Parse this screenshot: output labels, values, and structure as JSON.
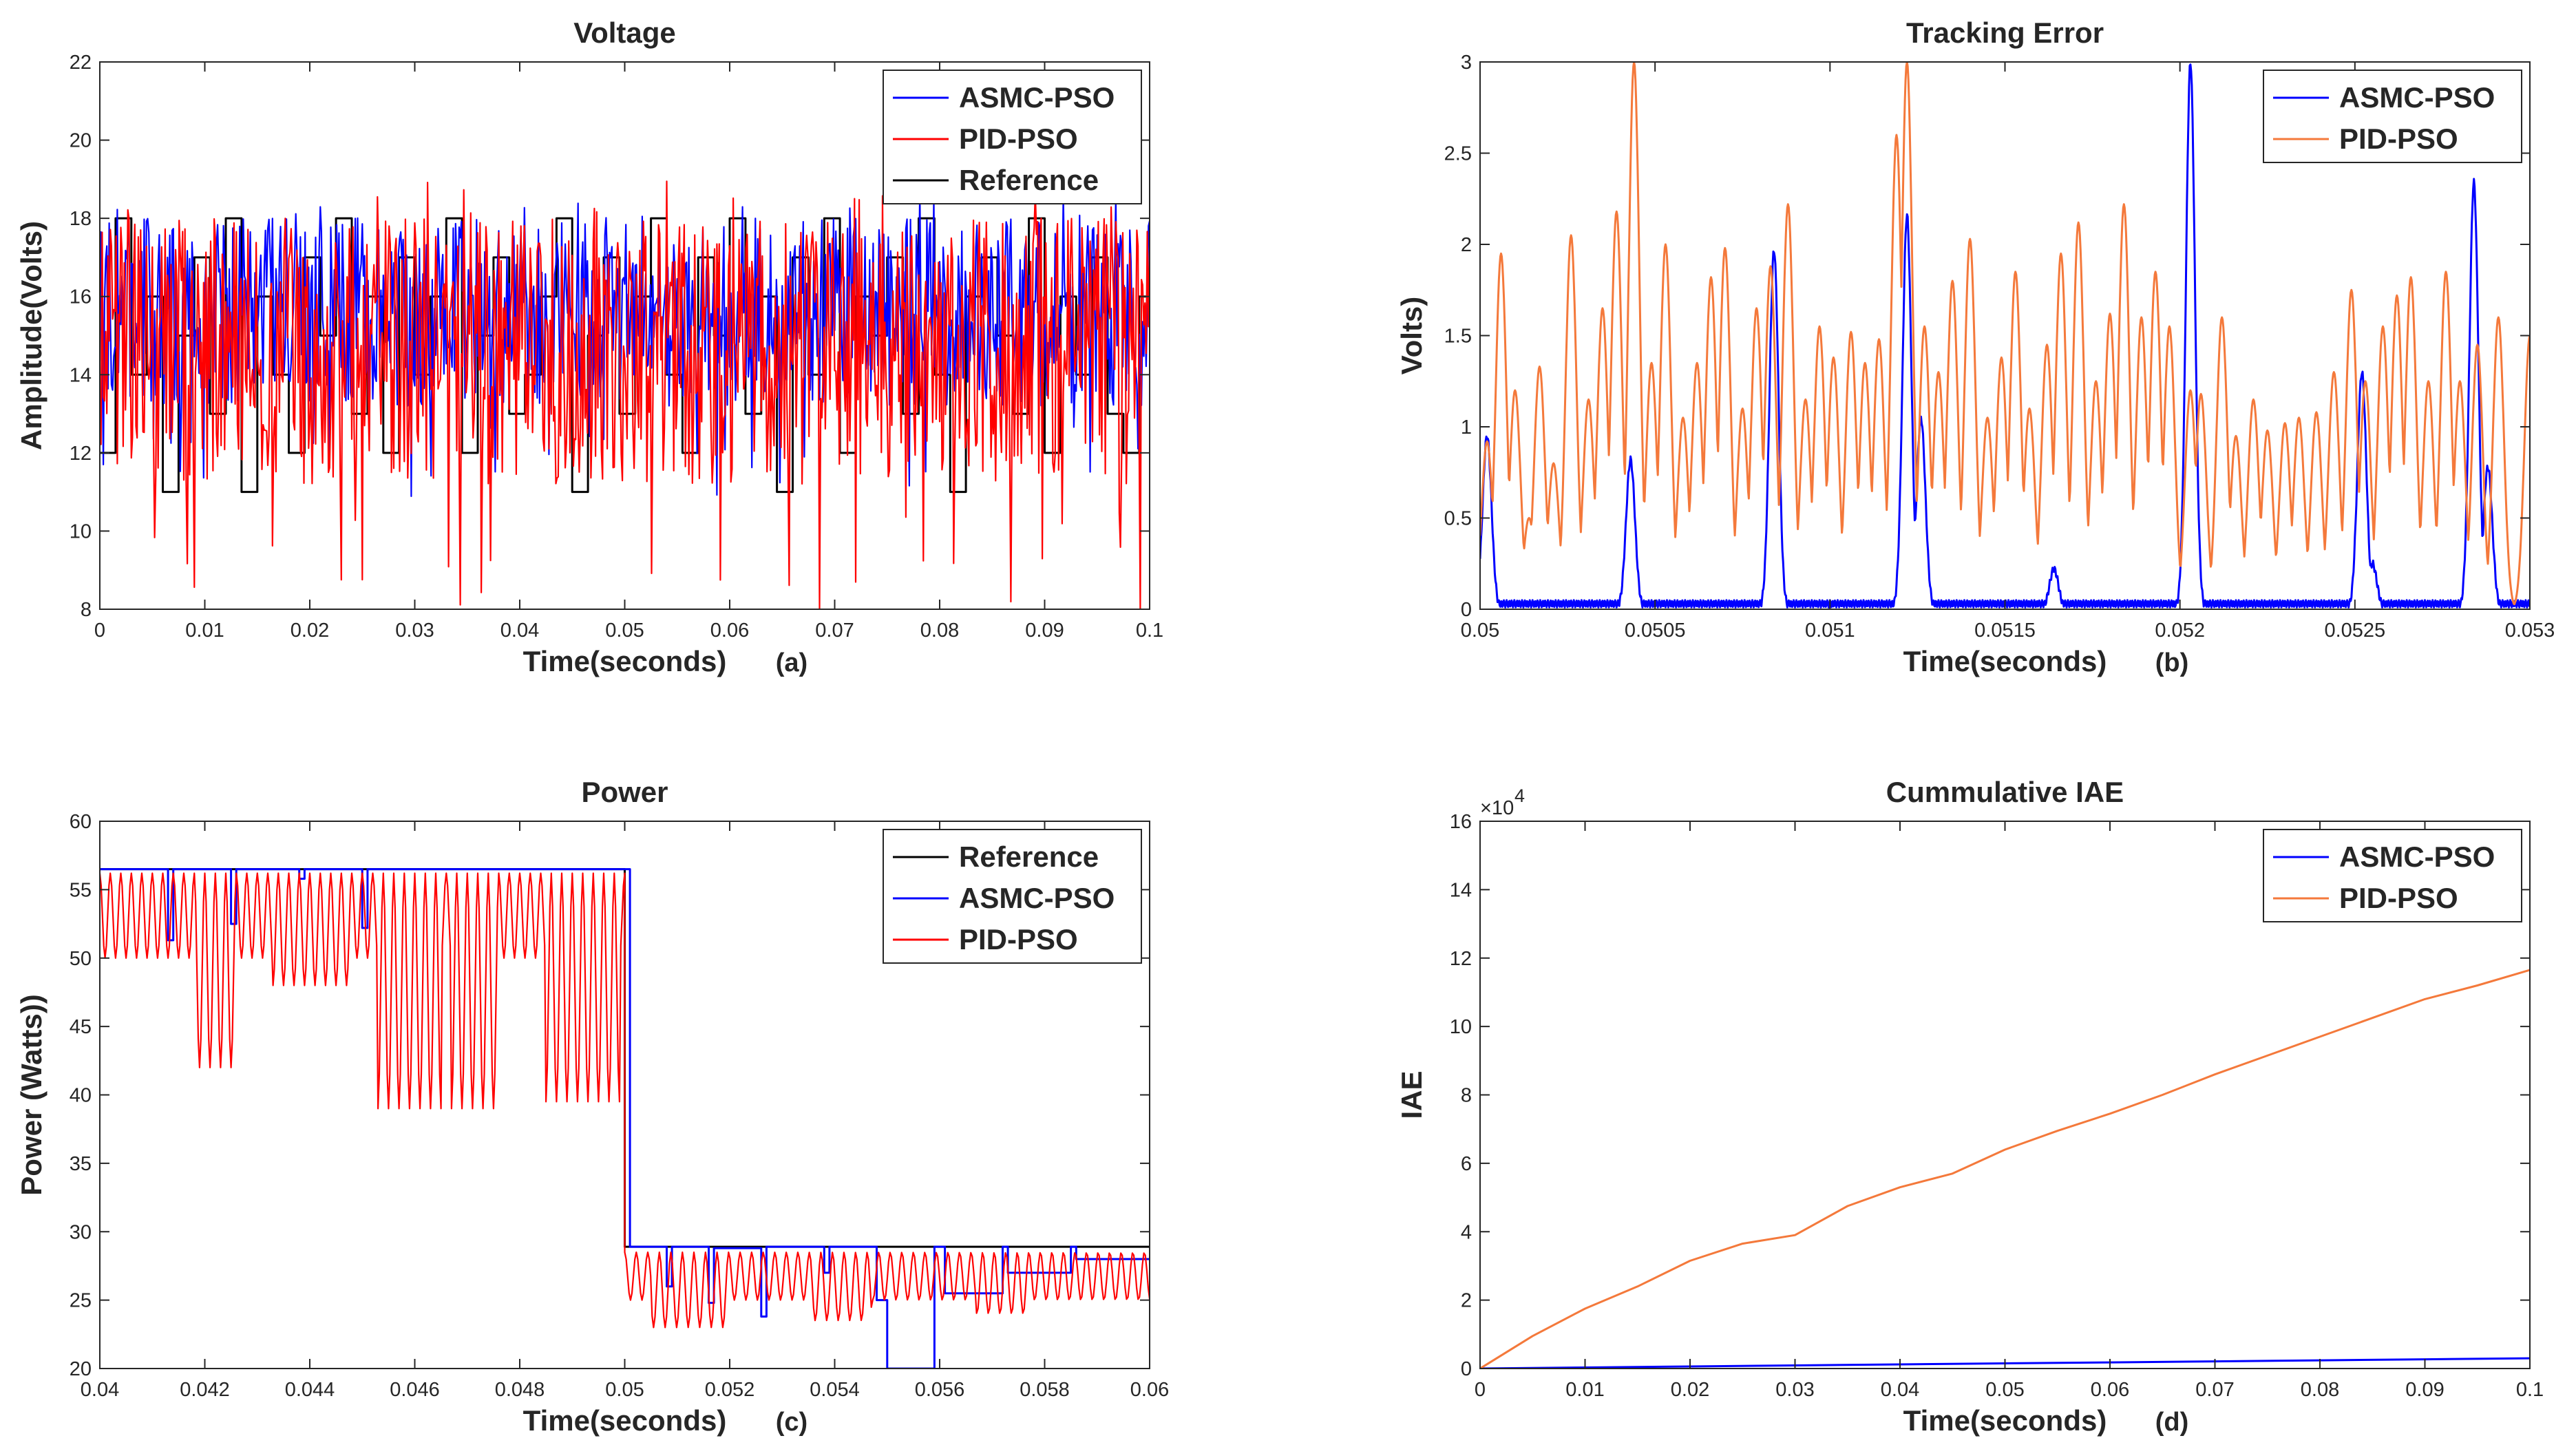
{
  "chart_data": [
    {
      "id": "a",
      "type": "line",
      "title": "Voltage",
      "xlabel": "Time(seconds)",
      "ylabel": "Amplitude(Volts)",
      "panel_label": "(a)",
      "xlim": [
        0,
        0.1
      ],
      "ylim": [
        8,
        22
      ],
      "xticks": [
        0,
        0.01,
        0.02,
        0.03,
        0.04,
        0.05,
        0.06,
        0.07,
        0.08,
        0.09,
        0.1
      ],
      "xticklabels": [
        "0",
        "0.01",
        "0.02",
        "0.03",
        "0.04",
        "0.05",
        "0.06",
        "0.07",
        "0.08",
        "0.09",
        "0.1"
      ],
      "yticks": [
        8,
        10,
        12,
        14,
        16,
        18,
        20,
        22
      ],
      "yticklabels": [
        "8",
        "10",
        "12",
        "14",
        "16",
        "18",
        "20",
        "22"
      ],
      "legend_position": "top-right",
      "legend": [
        "ASMC-PSO",
        "PID-PSO",
        "Reference"
      ],
      "series": [
        {
          "name": "Reference",
          "color": "#000000",
          "kind": "step",
          "x": [
            0,
            0.0015,
            0.003,
            0.0045,
            0.006,
            0.0075,
            0.009,
            0.0105,
            0.012,
            0.0135,
            0.015,
            0.0165,
            0.018,
            0.0195,
            0.021,
            0.0225,
            0.024,
            0.0255,
            0.027,
            0.0285,
            0.03,
            0.0315,
            0.033,
            0.0345,
            0.036,
            0.0375,
            0.039,
            0.0405,
            0.042,
            0.0435,
            0.045,
            0.0465,
            0.048,
            0.0495,
            0.051,
            0.0525,
            0.054,
            0.0555,
            0.057,
            0.0585,
            0.06,
            0.0615,
            0.063,
            0.0645,
            0.066,
            0.0675,
            0.069,
            0.0705,
            0.072,
            0.0735,
            0.075,
            0.0765,
            0.078,
            0.0795,
            0.081,
            0.0825,
            0.084,
            0.0855,
            0.087,
            0.0885,
            0.09,
            0.0915,
            0.093,
            0.0945,
            0.096,
            0.0975,
            0.099
          ],
          "values": [
            12,
            18,
            14,
            16,
            11,
            15,
            17,
            13,
            18,
            11,
            16,
            14,
            12,
            17,
            15,
            18,
            13,
            16,
            12,
            17,
            14,
            16,
            18,
            12,
            15,
            17,
            13,
            14,
            16,
            18,
            11,
            15,
            17,
            13,
            16,
            18,
            14,
            12,
            17,
            15,
            18,
            13,
            16,
            11,
            17,
            14,
            18,
            12,
            16,
            15,
            17,
            13,
            18,
            14,
            11,
            16,
            17,
            15,
            13,
            18,
            12,
            16,
            14,
            17,
            13,
            12,
            16
          ]
        },
        {
          "name": "ASMC-PSO",
          "color": "#0000ff",
          "kind": "noisy",
          "base": 15.6,
          "amp": 2.4,
          "seed": 7
        },
        {
          "name": "PID-PSO",
          "color": "#ff0000",
          "kind": "noisy",
          "base": 14.6,
          "amp": 3.4,
          "seed": 13
        }
      ]
    },
    {
      "id": "b",
      "type": "line",
      "title": "Tracking Error",
      "xlabel": "Time(seconds)",
      "ylabel": "Volts)",
      "panel_label": "(b)",
      "xlim": [
        0.05,
        0.053
      ],
      "ylim": [
        0,
        3
      ],
      "xticks": [
        0.05,
        0.0505,
        0.051,
        0.0515,
        0.052,
        0.0525,
        0.053
      ],
      "xticklabels": [
        "0.05",
        "0.0505",
        "0.051",
        "0.0515",
        "0.052",
        "0.0525",
        "0.053"
      ],
      "yticks": [
        0,
        0.5,
        1,
        1.5,
        2,
        2.5,
        3
      ],
      "yticklabels": [
        "0",
        "0.5",
        "1",
        "1.5",
        "2",
        "2.5",
        "3"
      ],
      "legend_position": "top-right",
      "legend": [
        "ASMC-PSO",
        "PID-PSO"
      ],
      "series": [
        {
          "name": "ASMC-PSO",
          "color": "#0000ff",
          "kind": "spikes",
          "baseline": 0.03,
          "width": 1.8e-05,
          "peaks": [
            [
              0.05002,
              0.95
            ],
            [
              0.05043,
              0.82
            ],
            [
              0.05084,
              1.97
            ],
            [
              0.05122,
              2.16
            ],
            [
              0.05126,
              1.05
            ],
            [
              0.05164,
              0.22
            ],
            [
              0.05203,
              3.0
            ],
            [
              0.05252,
              1.3
            ],
            [
              0.05255,
              0.25
            ],
            [
              0.05284,
              2.34
            ],
            [
              0.05288,
              0.78
            ]
          ]
        },
        {
          "name": "PID-PSO",
          "color": "#f4793b",
          "kind": "spikes",
          "baseline": 0.0,
          "width": 2.2e-05,
          "peaks": [
            [
              0.05002,
              0.92
            ],
            [
              0.05006,
              1.95
            ],
            [
              0.0501,
              1.2
            ],
            [
              0.05014,
              0.5
            ],
            [
              0.05017,
              1.33
            ],
            [
              0.05021,
              0.8
            ],
            [
              0.05026,
              2.05
            ],
            [
              0.05031,
              1.15
            ],
            [
              0.05035,
              1.65
            ],
            [
              0.05039,
              2.18
            ],
            [
              0.05044,
              3.0
            ],
            [
              0.05049,
              1.35
            ],
            [
              0.05053,
              2.0
            ],
            [
              0.05058,
              1.05
            ],
            [
              0.05062,
              1.35
            ],
            [
              0.05066,
              1.82
            ],
            [
              0.0507,
              1.98
            ],
            [
              0.05075,
              1.1
            ],
            [
              0.05079,
              1.65
            ],
            [
              0.05083,
              1.88
            ],
            [
              0.05088,
              2.22
            ],
            [
              0.05093,
              1.15
            ],
            [
              0.05097,
              1.55
            ],
            [
              0.05101,
              1.38
            ],
            [
              0.05106,
              1.52
            ],
            [
              0.0511,
              1.35
            ],
            [
              0.05114,
              1.48
            ],
            [
              0.05119,
              2.6
            ],
            [
              0.05122,
              3.0
            ],
            [
              0.05127,
              1.55
            ],
            [
              0.05131,
              1.3
            ],
            [
              0.05135,
              1.8
            ],
            [
              0.0514,
              2.03
            ],
            [
              0.05145,
              1.05
            ],
            [
              0.05149,
              1.38
            ],
            [
              0.05153,
              1.85
            ],
            [
              0.05157,
              1.1
            ],
            [
              0.05162,
              1.45
            ],
            [
              0.05166,
              1.95
            ],
            [
              0.05171,
              2.12
            ],
            [
              0.05176,
              1.25
            ],
            [
              0.0518,
              1.62
            ],
            [
              0.05184,
              2.22
            ],
            [
              0.05189,
              1.6
            ],
            [
              0.05193,
              1.85
            ],
            [
              0.05197,
              1.55
            ],
            [
              0.05203,
              1.2
            ],
            [
              0.05206,
              1.18
            ],
            [
              0.05212,
              1.6
            ],
            [
              0.05216,
              0.95
            ],
            [
              0.05221,
              1.15
            ],
            [
              0.05225,
              0.98
            ],
            [
              0.0523,
              1.02
            ],
            [
              0.05234,
              1.05
            ],
            [
              0.05239,
              1.08
            ],
            [
              0.05244,
              1.3
            ],
            [
              0.05249,
              1.75
            ],
            [
              0.05253,
              1.25
            ],
            [
              0.05258,
              1.55
            ],
            [
              0.05262,
              1.72
            ],
            [
              0.05266,
              1.82
            ],
            [
              0.05271,
              1.25
            ],
            [
              0.05276,
              1.85
            ],
            [
              0.0528,
              1.25
            ],
            [
              0.05285,
              1.45
            ],
            [
              0.05291,
              1.6
            ],
            [
              0.053,
              1.5
            ]
          ]
        }
      ]
    },
    {
      "id": "c",
      "type": "line",
      "title": "Power",
      "xlabel": "Time(seconds)",
      "ylabel": "Power (Watts))",
      "panel_label": "(c)",
      "xlim": [
        0.04,
        0.06
      ],
      "ylim": [
        20,
        60
      ],
      "xticks": [
        0.04,
        0.042,
        0.044,
        0.046,
        0.048,
        0.05,
        0.052,
        0.054,
        0.056,
        0.058,
        0.06
      ],
      "xticklabels": [
        "0.04",
        "0.042",
        "0.044",
        "0.046",
        "0.048",
        "0.05",
        "0.052",
        "0.054",
        "0.056",
        "0.058",
        "0.06"
      ],
      "yticks": [
        20,
        25,
        30,
        35,
        40,
        45,
        50,
        55,
        60
      ],
      "yticklabels": [
        "20",
        "25",
        "30",
        "35",
        "40",
        "45",
        "50",
        "55",
        "60"
      ],
      "legend_position": "top-right",
      "legend": [
        "Reference",
        "ASMC-PSO",
        "PID-PSO"
      ],
      "series": [
        {
          "name": "Reference",
          "color": "#000000",
          "kind": "step",
          "x": [
            0.04,
            0.05
          ],
          "values": [
            56.5,
            28.9
          ]
        },
        {
          "name": "ASMC-PSO",
          "color": "#0000ff",
          "kind": "step",
          "x": [
            0.04,
            0.0413,
            0.0414,
            0.0425,
            0.0426,
            0.0438,
            0.0439,
            0.045,
            0.0451,
            0.05,
            0.0501,
            0.0508,
            0.0509,
            0.0516,
            0.0517,
            0.0526,
            0.0527,
            0.0538,
            0.0539,
            0.0548,
            0.055,
            0.0559,
            0.0561,
            0.0572,
            0.0573,
            0.0585,
            0.0586,
            0.06
          ],
          "values": [
            56.5,
            51.3,
            56.5,
            52.5,
            56.5,
            55.8,
            56.5,
            52.2,
            56.5,
            56.5,
            28.9,
            26.0,
            28.9,
            24.8,
            28.8,
            23.8,
            28.9,
            27.0,
            28.9,
            25.0,
            20.0,
            28.9,
            25.5,
            28.9,
            27.0,
            28.9,
            28.0,
            28.0
          ]
        },
        {
          "name": "PID-PSO",
          "color": "#ff0000",
          "kind": "osc",
          "segments": [
            [
              0.04,
              0.05,
              56.2,
              50.0,
              0.0002
            ],
            [
              0.05,
              0.06,
              28.5,
              25.0,
              0.00022
            ]
          ],
          "dips": [
            [
              0.0418,
              0.0426,
              42.0
            ],
            [
              0.0433,
              0.0448,
              48.0
            ],
            [
              0.0453,
              0.0465,
              39.0
            ],
            [
              0.0467,
              0.0476,
              39.0
            ],
            [
              0.0485,
              0.0499,
              39.5
            ],
            [
              0.0505,
              0.052,
              23.0
            ],
            [
              0.0535,
              0.0547,
              23.5
            ],
            [
              0.0567,
              0.0577,
              24.0
            ]
          ]
        }
      ]
    },
    {
      "id": "d",
      "type": "line",
      "title": "Cummulative IAE",
      "xlabel": "Time(seconds)",
      "ylabel": "IAE",
      "panel_label": "(d)",
      "scale_label": "×10",
      "scale_exponent": "4",
      "xlim": [
        0,
        0.1
      ],
      "ylim": [
        0,
        16
      ],
      "xticks": [
        0,
        0.01,
        0.02,
        0.03,
        0.04,
        0.05,
        0.06,
        0.07,
        0.08,
        0.09,
        0.1
      ],
      "xticklabels": [
        "0",
        "0.01",
        "0.02",
        "0.03",
        "0.04",
        "0.05",
        "0.06",
        "0.07",
        "0.08",
        "0.09",
        "0.1"
      ],
      "yticks": [
        0,
        2,
        4,
        6,
        8,
        10,
        12,
        14,
        16
      ],
      "yticklabels": [
        "0",
        "2",
        "4",
        "6",
        "8",
        "10",
        "12",
        "14",
        "16"
      ],
      "legend_position": "top-right",
      "legend": [
        "ASMC-PSO",
        "PID-PSO"
      ],
      "series": [
        {
          "name": "ASMC-PSO",
          "color": "#0000ff",
          "kind": "xy",
          "x": [
            0,
            0.01,
            0.02,
            0.03,
            0.04,
            0.05,
            0.06,
            0.07,
            0.08,
            0.09,
            0.1
          ],
          "values": [
            0,
            0.03,
            0.06,
            0.09,
            0.12,
            0.15,
            0.18,
            0.21,
            0.24,
            0.27,
            0.3
          ]
        },
        {
          "name": "PID-PSO",
          "color": "#f4793b",
          "kind": "xy",
          "x": [
            0,
            0.005,
            0.01,
            0.015,
            0.02,
            0.025,
            0.03,
            0.035,
            0.04,
            0.045,
            0.05,
            0.055,
            0.06,
            0.065,
            0.07,
            0.075,
            0.08,
            0.085,
            0.09,
            0.095,
            0.1
          ],
          "values": [
            0,
            0.95,
            1.75,
            2.4,
            3.15,
            3.65,
            3.9,
            4.75,
            5.3,
            5.7,
            6.4,
            6.95,
            7.45,
            8.0,
            8.6,
            9.15,
            9.7,
            10.25,
            10.8,
            11.2,
            11.65
          ]
        }
      ]
    }
  ]
}
